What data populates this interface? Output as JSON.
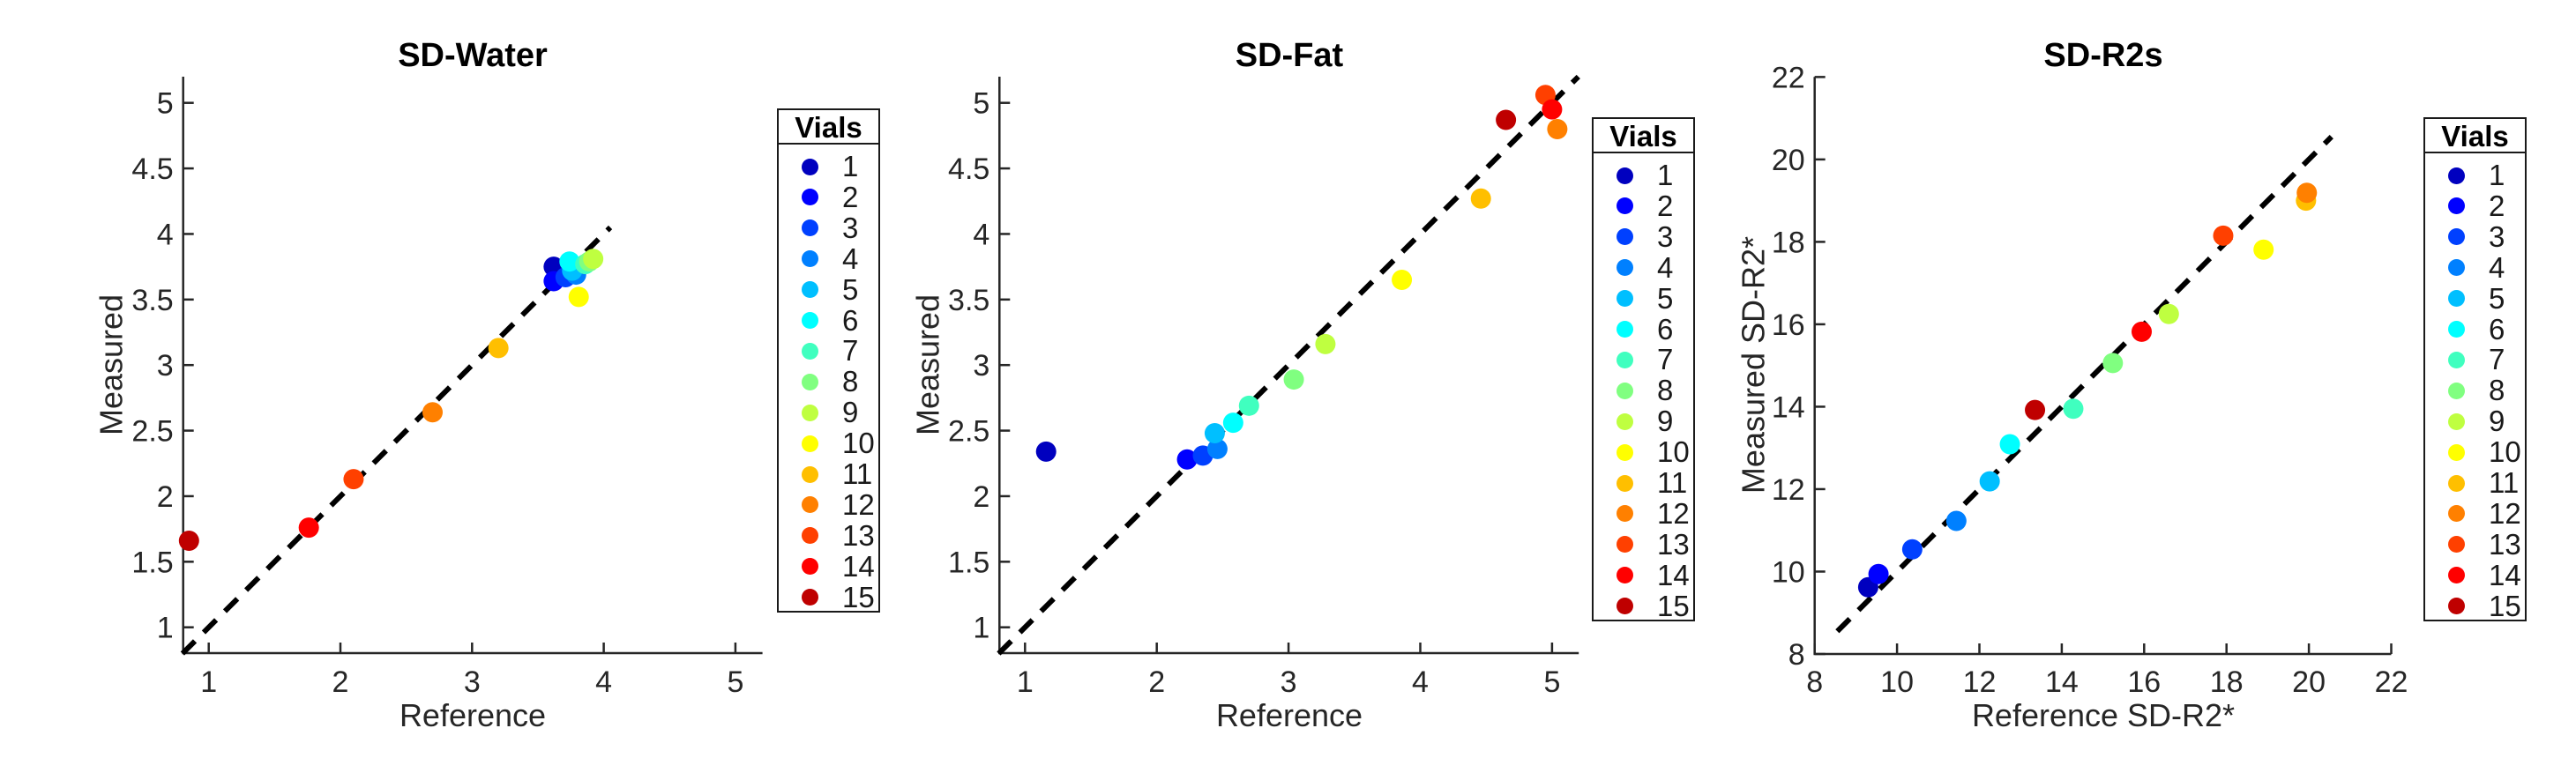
{
  "figure": {
    "background": "#ffffff",
    "text_color": "#262626",
    "axis_color": "#262626",
    "identity_line_color": "#000000"
  },
  "legend": {
    "title": "Vials",
    "entries": [
      "1",
      "2",
      "3",
      "4",
      "5",
      "6",
      "7",
      "8",
      "9",
      "10",
      "11",
      "12",
      "13",
      "14",
      "15"
    ]
  },
  "vial_colors": [
    "#0000BF",
    "#0000FF",
    "#0040FF",
    "#0080FF",
    "#00BFFF",
    "#00FFFF",
    "#40FFBF",
    "#80FF80",
    "#BFFF40",
    "#FFFF00",
    "#FFBF00",
    "#FF8000",
    "#FF4000",
    "#FF0000",
    "#BF0000"
  ],
  "chart_data": [
    {
      "type": "scatter",
      "title": "SD-Water",
      "xlabel": "Reference",
      "ylabel": "Measured",
      "xlim": [
        0.8,
        5.2
      ],
      "ylim": [
        0.8,
        5.2
      ],
      "xticks": [
        1,
        2,
        3,
        4,
        5
      ],
      "yticks": [
        1,
        1.5,
        2,
        2.5,
        3,
        3.5,
        4,
        4.5,
        5
      ],
      "grid": false,
      "legend_position": "right-outside",
      "identity_line": {
        "style": "dashed",
        "from": 0.8,
        "to": 4.05
      },
      "points": [
        {
          "vial": 1,
          "x": 3.62,
          "y": 3.75
        },
        {
          "vial": 2,
          "x": 3.62,
          "y": 3.64
        },
        {
          "vial": 3,
          "x": 3.71,
          "y": 3.67
        },
        {
          "vial": 4,
          "x": 3.79,
          "y": 3.69
        },
        {
          "vial": 5,
          "x": 3.76,
          "y": 3.72
        },
        {
          "vial": 6,
          "x": 3.74,
          "y": 3.79
        },
        {
          "vial": 7,
          "x": 3.86,
          "y": 3.77
        },
        {
          "vial": 8,
          "x": 3.89,
          "y": 3.79
        },
        {
          "vial": 9,
          "x": 3.92,
          "y": 3.81
        },
        {
          "vial": 10,
          "x": 3.81,
          "y": 3.52
        },
        {
          "vial": 11,
          "x": 3.2,
          "y": 3.13
        },
        {
          "vial": 12,
          "x": 2.7,
          "y": 2.64
        },
        {
          "vial": 13,
          "x": 2.1,
          "y": 2.13
        },
        {
          "vial": 14,
          "x": 1.76,
          "y": 1.76
        },
        {
          "vial": 15,
          "x": 0.85,
          "y": 1.66
        }
      ]
    },
    {
      "type": "scatter",
      "title": "SD-Fat",
      "xlabel": "Reference",
      "ylabel": "Measured",
      "xlim": [
        0.8,
        5.2
      ],
      "ylim": [
        0.8,
        5.2
      ],
      "xticks": [
        1,
        2,
        3,
        4,
        5
      ],
      "yticks": [
        1,
        1.5,
        2,
        2.5,
        3,
        3.5,
        4,
        4.5,
        5
      ],
      "grid": false,
      "legend_position": "right-outside",
      "identity_line": {
        "style": "dashed",
        "from": 0.8,
        "to": 5.2
      },
      "points": [
        {
          "vial": 1,
          "x": 1.16,
          "y": 2.34
        },
        {
          "vial": 2,
          "x": 2.23,
          "y": 2.28
        },
        {
          "vial": 3,
          "x": 2.35,
          "y": 2.31
        },
        {
          "vial": 4,
          "x": 2.46,
          "y": 2.36
        },
        {
          "vial": 5,
          "x": 2.44,
          "y": 2.48
        },
        {
          "vial": 6,
          "x": 2.58,
          "y": 2.56
        },
        {
          "vial": 7,
          "x": 2.7,
          "y": 2.69
        },
        {
          "vial": 8,
          "x": 3.04,
          "y": 2.89
        },
        {
          "vial": 9,
          "x": 3.28,
          "y": 3.16
        },
        {
          "vial": 10,
          "x": 3.86,
          "y": 3.65
        },
        {
          "vial": 11,
          "x": 4.46,
          "y": 4.27
        },
        {
          "vial": 12,
          "x": 5.04,
          "y": 4.8
        },
        {
          "vial": 13,
          "x": 4.95,
          "y": 5.06
        },
        {
          "vial": 14,
          "x": 5.0,
          "y": 4.95
        },
        {
          "vial": 15,
          "x": 4.65,
          "y": 4.87
        }
      ]
    },
    {
      "type": "scatter",
      "title": "SD-R2s",
      "xlabel": "Reference SD-R2*",
      "ylabel": "Measured SD-R2*",
      "xlim": [
        8,
        22
      ],
      "ylim": [
        8,
        22
      ],
      "xticks": [
        8,
        10,
        12,
        14,
        16,
        18,
        20,
        22
      ],
      "yticks": [
        8,
        10,
        12,
        14,
        16,
        18,
        20,
        22
      ],
      "grid": false,
      "legend_position": "right-outside",
      "identity_line": {
        "style": "dashed",
        "from": 8.55,
        "to": 20.55
      },
      "points": [
        {
          "vial": 1,
          "x": 9.3,
          "y": 9.62
        },
        {
          "vial": 2,
          "x": 9.55,
          "y": 9.94
        },
        {
          "vial": 3,
          "x": 10.37,
          "y": 10.54
        },
        {
          "vial": 4,
          "x": 11.44,
          "y": 11.23
        },
        {
          "vial": 5,
          "x": 12.25,
          "y": 12.19
        },
        {
          "vial": 6,
          "x": 12.74,
          "y": 13.09
        },
        {
          "vial": 7,
          "x": 14.28,
          "y": 13.95
        },
        {
          "vial": 8,
          "x": 15.24,
          "y": 15.06
        },
        {
          "vial": 9,
          "x": 16.6,
          "y": 16.25
        },
        {
          "vial": 10,
          "x": 18.9,
          "y": 17.81
        },
        {
          "vial": 11,
          "x": 19.93,
          "y": 19.0
        },
        {
          "vial": 12,
          "x": 19.95,
          "y": 19.19
        },
        {
          "vial": 13,
          "x": 17.92,
          "y": 18.15
        },
        {
          "vial": 14,
          "x": 15.94,
          "y": 15.82
        },
        {
          "vial": 15,
          "x": 13.35,
          "y": 13.92
        }
      ]
    }
  ]
}
